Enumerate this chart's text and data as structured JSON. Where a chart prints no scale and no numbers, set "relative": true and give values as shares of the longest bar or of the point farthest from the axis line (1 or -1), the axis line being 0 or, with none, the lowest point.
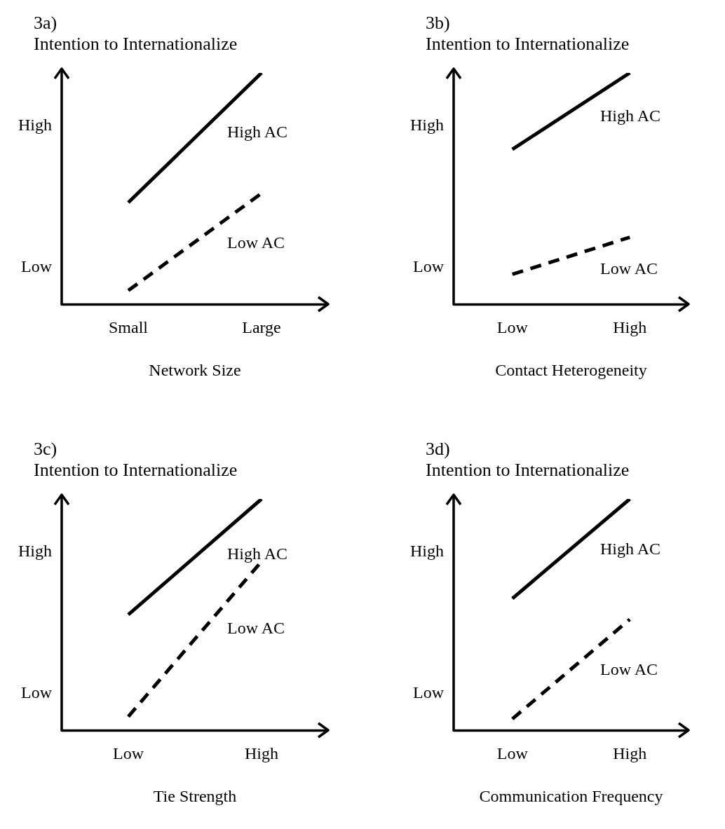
{
  "chart_data": [
    {
      "type": "line",
      "title": "3a)",
      "ylabel": "Intention to Internationalize",
      "xlabel": "Network Size",
      "relative": true,
      "categories": [
        "Small",
        "Large"
      ],
      "annotations": [
        "High",
        "Low"
      ],
      "series": [
        {
          "name": "High AC",
          "color": "#000000",
          "line_style": "solid",
          "values": [
            0.44,
            1.0
          ]
        },
        {
          "name": "Low AC",
          "color": "#000000",
          "line_style": "dashed",
          "values": [
            0.06,
            0.48
          ]
        }
      ]
    },
    {
      "type": "line",
      "title": "3b)",
      "ylabel": "Intention to Internationalize",
      "xlabel": "Contact Heterogeneity",
      "relative": true,
      "categories": [
        "Low",
        "High"
      ],
      "annotations": [
        "High",
        "Low"
      ],
      "series": [
        {
          "name": "High AC",
          "color": "#000000",
          "line_style": "solid",
          "values": [
            0.67,
            1.0
          ]
        },
        {
          "name": "Low AC",
          "color": "#000000",
          "line_style": "dashed",
          "values": [
            0.13,
            0.29
          ]
        }
      ]
    },
    {
      "type": "line",
      "title": "3c)",
      "ylabel": "Intention to Internationalize",
      "xlabel": "Tie Strength",
      "relative": true,
      "categories": [
        "Low",
        "High"
      ],
      "annotations": [
        "High",
        "Low"
      ],
      "series": [
        {
          "name": "High AC",
          "color": "#000000",
          "line_style": "solid",
          "values": [
            0.5,
            1.0
          ]
        },
        {
          "name": "Low AC",
          "color": "#000000",
          "line_style": "dashed",
          "values": [
            0.06,
            0.73
          ]
        }
      ]
    },
    {
      "type": "line",
      "title": "3d)",
      "ylabel": "Intention to Internationalize",
      "xlabel": "Communication Frequency",
      "relative": true,
      "categories": [
        "Low",
        "High"
      ],
      "annotations": [
        "High",
        "Low"
      ],
      "series": [
        {
          "name": "High AC",
          "color": "#000000",
          "line_style": "solid",
          "values": [
            0.57,
            1.0
          ]
        },
        {
          "name": "Low AC",
          "color": "#000000",
          "line_style": "dashed",
          "values": [
            0.05,
            0.48
          ]
        }
      ]
    }
  ]
}
